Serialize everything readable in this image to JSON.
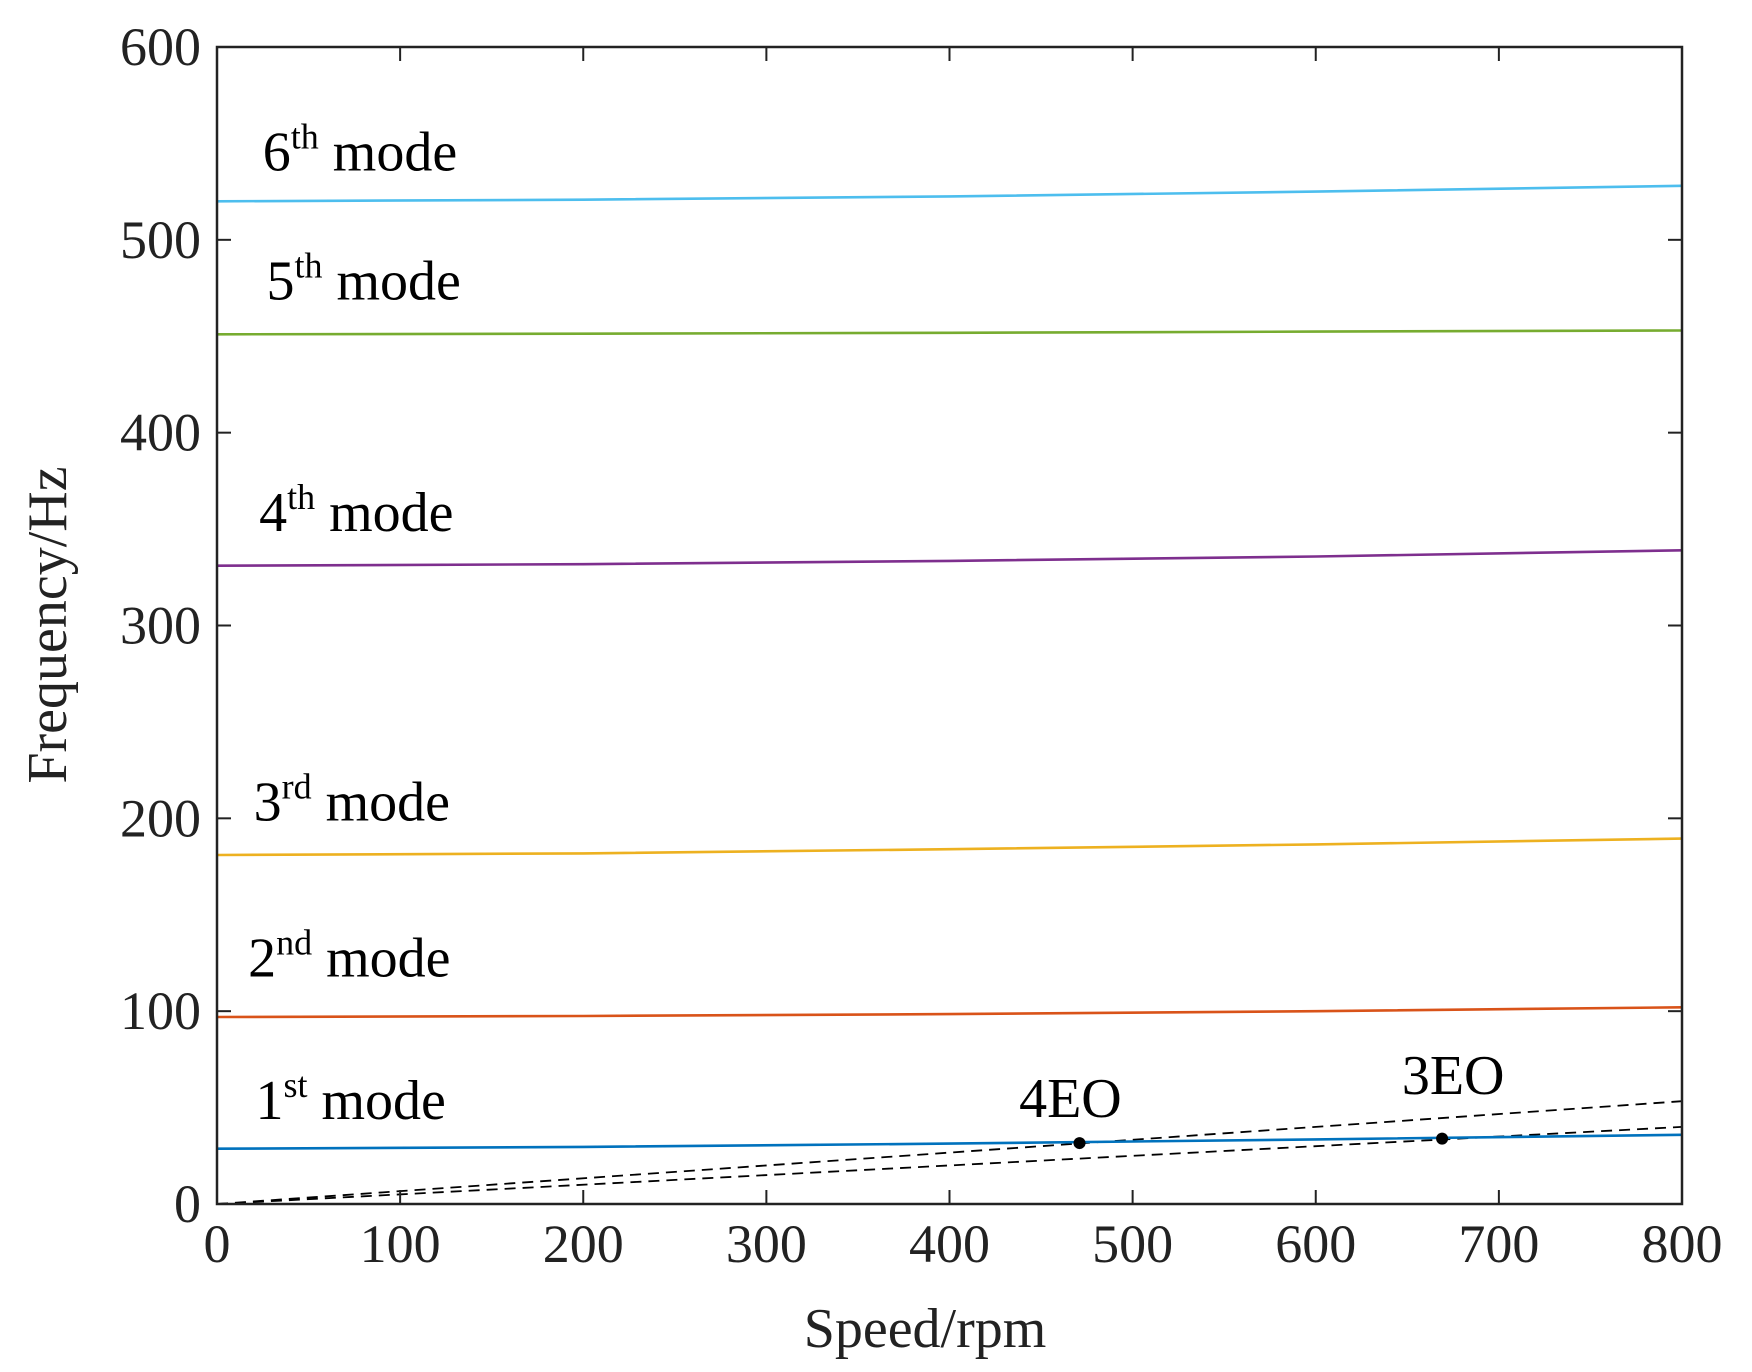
{
  "chart_data": {
    "type": "line",
    "title": "",
    "xlabel": "Speed/rpm",
    "ylabel": "Frequency/Hz",
    "xlim": [
      0,
      800
    ],
    "ylim": [
      0,
      600
    ],
    "xticks": [
      0,
      100,
      200,
      300,
      400,
      500,
      600,
      700,
      800
    ],
    "yticks": [
      0,
      100,
      200,
      300,
      400,
      500,
      600
    ],
    "grid": false,
    "legend": "none",
    "series": [
      {
        "name": "1st mode",
        "color": "#0072BD",
        "x": [
          0,
          200,
          400,
          600,
          800
        ],
        "y": [
          28.7,
          29.6,
          31.3,
          33.5,
          35.9
        ]
      },
      {
        "name": "2nd mode",
        "color": "#D95319",
        "x": [
          0,
          200,
          400,
          600,
          800
        ],
        "y": [
          97.0,
          97.5,
          98.5,
          100.0,
          102.0
        ]
      },
      {
        "name": "3rd mode",
        "color": "#EDB120",
        "x": [
          0,
          200,
          400,
          600,
          800
        ],
        "y": [
          181.0,
          181.8,
          184.0,
          186.5,
          189.5
        ]
      },
      {
        "name": "4th mode",
        "color": "#7E2F8E",
        "x": [
          0,
          200,
          400,
          600,
          800
        ],
        "y": [
          331.0,
          331.8,
          333.5,
          335.8,
          339.0
        ]
      },
      {
        "name": "5th mode",
        "color": "#77AC30",
        "x": [
          0,
          200,
          400,
          600,
          800
        ],
        "y": [
          451.0,
          451.3,
          451.8,
          452.4,
          453.0
        ]
      },
      {
        "name": "6th mode",
        "color": "#4DBEEE",
        "x": [
          0,
          200,
          400,
          600,
          800
        ],
        "y": [
          520.0,
          520.8,
          522.5,
          525.0,
          528.0
        ]
      }
    ],
    "excitation_lines": [
      {
        "name": "4EO",
        "color": "#000000",
        "dash": true,
        "x": [
          0,
          800
        ],
        "y": [
          0,
          53.3
        ]
      },
      {
        "name": "3EO",
        "color": "#000000",
        "dash": true,
        "x": [
          0,
          800
        ],
        "y": [
          0,
          40.0
        ]
      }
    ],
    "intersections": [
      {
        "name": "4EO",
        "x": 471,
        "y": 31.6
      },
      {
        "name": "3EO",
        "x": 669,
        "y": 33.9
      }
    ],
    "annotations": [
      {
        "series": "6th mode",
        "number": "6",
        "sup": "th",
        "rest": " mode",
        "x": 25,
        "y": 536
      },
      {
        "series": "5th mode",
        "number": "5",
        "sup": "th",
        "rest": " mode",
        "x": 27,
        "y": 469
      },
      {
        "series": "4th mode",
        "number": "4",
        "sup": "th",
        "rest": " mode",
        "x": 23,
        "y": 349
      },
      {
        "series": "3rd mode",
        "number": "3",
        "sup": "rd",
        "rest": " mode",
        "x": 20,
        "y": 199
      },
      {
        "series": "2nd mode",
        "number": "2",
        "sup": "nd",
        "rest": " mode",
        "x": 17,
        "y": 118
      },
      {
        "series": "1st mode",
        "number": "1",
        "sup": "st",
        "rest": " mode",
        "x": 21,
        "y": 44
      },
      {
        "series": "4EO",
        "number": "4EO",
        "sup": "",
        "rest": "",
        "x": 438,
        "y": 45
      },
      {
        "series": "3EO",
        "number": "3EO",
        "sup": "",
        "rest": "",
        "x": 647,
        "y": 57
      }
    ]
  }
}
